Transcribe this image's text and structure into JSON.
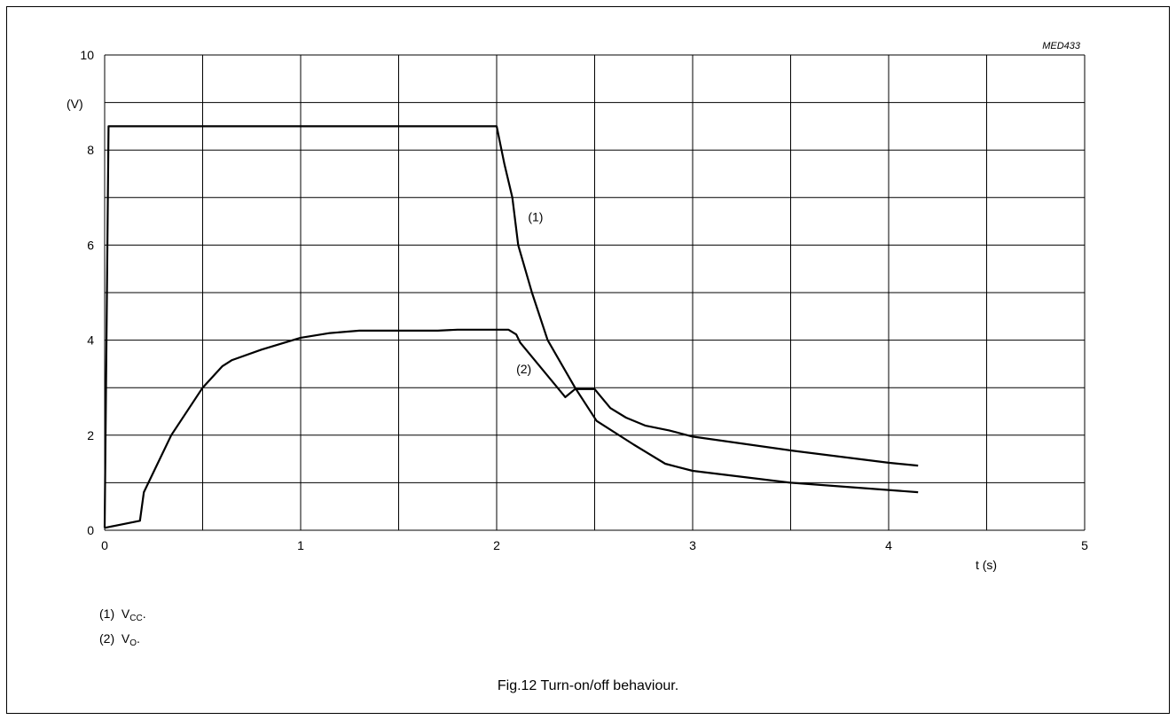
{
  "figure_id": "MED433",
  "caption": "Fig.12  Turn-on/off behaviour.",
  "notes": [
    {
      "marker": "(1)",
      "symbol": "V",
      "subscript": "CC",
      "suffix": "."
    },
    {
      "marker": "(2)",
      "symbol": "V",
      "subscript": "O",
      "suffix": "."
    }
  ],
  "chart_data": {
    "type": "line",
    "title": "",
    "xlabel": "t (s)",
    "ylabel": "(V)",
    "xlim": [
      0,
      5
    ],
    "ylim": [
      0,
      10
    ],
    "x_ticks": [
      0,
      1,
      2,
      3,
      4,
      5
    ],
    "y_ticks": [
      0,
      2,
      4,
      6,
      8,
      10
    ],
    "x_grid_step": 0.5,
    "y_grid_step": 1,
    "grid": true,
    "line_color": "#000000",
    "series": [
      {
        "name": "(1)",
        "label_at": [
          2.16,
          6.5
        ],
        "points": [
          [
            0.0,
            0.05
          ],
          [
            0.02,
            8.5
          ],
          [
            2.0,
            8.5
          ],
          [
            2.04,
            7.7
          ],
          [
            2.08,
            7.0
          ],
          [
            2.11,
            6.0
          ],
          [
            2.18,
            5.0
          ],
          [
            2.26,
            4.0
          ],
          [
            2.4,
            3.0
          ],
          [
            2.51,
            2.3
          ],
          [
            2.7,
            1.8
          ],
          [
            2.86,
            1.4
          ],
          [
            3.0,
            1.25
          ],
          [
            3.5,
            1.0
          ],
          [
            4.15,
            0.8
          ]
        ]
      },
      {
        "name": "(2)",
        "label_at": [
          2.1,
          3.3
        ],
        "points": [
          [
            0.0,
            0.05
          ],
          [
            0.18,
            0.2
          ],
          [
            0.2,
            0.8
          ],
          [
            0.34,
            2.0
          ],
          [
            0.5,
            3.0
          ],
          [
            0.6,
            3.45
          ],
          [
            0.65,
            3.58
          ],
          [
            0.8,
            3.8
          ],
          [
            1.0,
            4.05
          ],
          [
            1.15,
            4.15
          ],
          [
            1.3,
            4.2
          ],
          [
            1.7,
            4.2
          ],
          [
            1.8,
            4.22
          ],
          [
            2.06,
            4.22
          ],
          [
            2.1,
            4.12
          ],
          [
            2.12,
            3.95
          ],
          [
            2.35,
            2.8
          ],
          [
            2.4,
            2.97
          ],
          [
            2.5,
            2.97
          ],
          [
            2.52,
            2.87
          ],
          [
            2.58,
            2.57
          ],
          [
            2.66,
            2.37
          ],
          [
            2.76,
            2.2
          ],
          [
            2.88,
            2.1
          ],
          [
            3.0,
            1.97
          ],
          [
            3.5,
            1.68
          ],
          [
            4.0,
            1.42
          ],
          [
            4.15,
            1.36
          ]
        ]
      }
    ]
  }
}
